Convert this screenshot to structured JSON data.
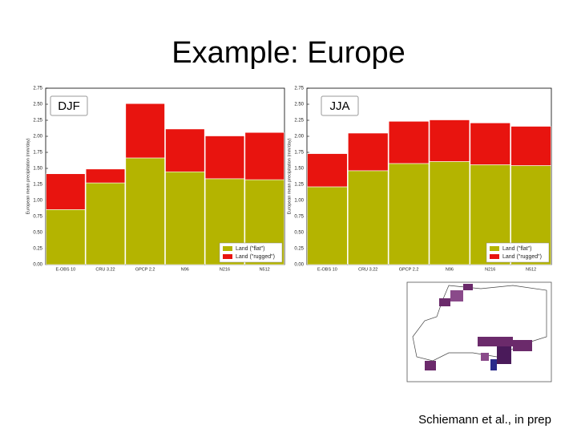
{
  "slide": {
    "title": "Example: Europe",
    "citation": "Schiemann et al., in prep"
  },
  "chart_data": [
    {
      "type": "bar",
      "stacked": true,
      "title": "DJF",
      "y_label": "European mean precipitation (mm/day)",
      "categories": [
        "E-OBS 10",
        "CRU 3.22",
        "GPCP 2.2",
        "N96",
        "N216",
        "N512"
      ],
      "series": [
        {
          "name": "Land (\"flat\")",
          "color": "#b4b400",
          "values": [
            0.858,
            1.274,
            1.663,
            1.447,
            1.339,
            1.324
          ]
        },
        {
          "name": "Land (\"rugged\")",
          "color": "#e8140f",
          "values": [
            0.558,
            0.216,
            0.847,
            0.667,
            0.667,
            0.736
          ]
        }
      ],
      "ylim": [
        0,
        2.75
      ],
      "yticks": [
        {
          "value": 0,
          "label": "0.00"
        },
        0.25,
        {
          "value": 0.5,
          "label": "0.50"
        },
        0.75,
        {
          "value": 1,
          "label": "1.00"
        },
        1.25,
        {
          "value": 1.5,
          "label": "1.50"
        },
        1.75,
        {
          "value": 2,
          "label": "2.00"
        },
        2.25,
        {
          "value": 2.5,
          "label": "2.50"
        },
        2.75
      ],
      "legend": "lower right"
    },
    {
      "type": "bar",
      "stacked": true,
      "title": "JJA",
      "y_label": "European mean precipitation (mm/day)",
      "categories": [
        "E-OBS 10",
        "CRU 3.22",
        "GPCP 2.2",
        "N96",
        "N216",
        "N512"
      ],
      "series": [
        {
          "name": "Land (\"flat\")",
          "color": "#b4b400",
          "values": [
            1.213,
            1.464,
            1.576,
            1.607,
            1.557,
            1.544
          ]
        },
        {
          "name": "Land (\"rugged\")",
          "color": "#e8140f",
          "values": [
            0.517,
            0.586,
            0.658,
            0.649,
            0.652,
            0.612
          ]
        }
      ],
      "ylim": [
        0,
        2.75
      ],
      "yticks": [
        {
          "value": 0,
          "label": "0.00"
        },
        0.25,
        {
          "value": 0.5,
          "label": "0.50"
        },
        0.75,
        {
          "value": 1,
          "label": "1.00"
        },
        1.25,
        {
          "value": 1.5,
          "label": "1.50"
        },
        1.75,
        {
          "value": 2,
          "label": "2.00"
        },
        2.25,
        {
          "value": 2.5,
          "label": "2.50"
        },
        2.75
      ],
      "legend": "lower right"
    }
  ]
}
